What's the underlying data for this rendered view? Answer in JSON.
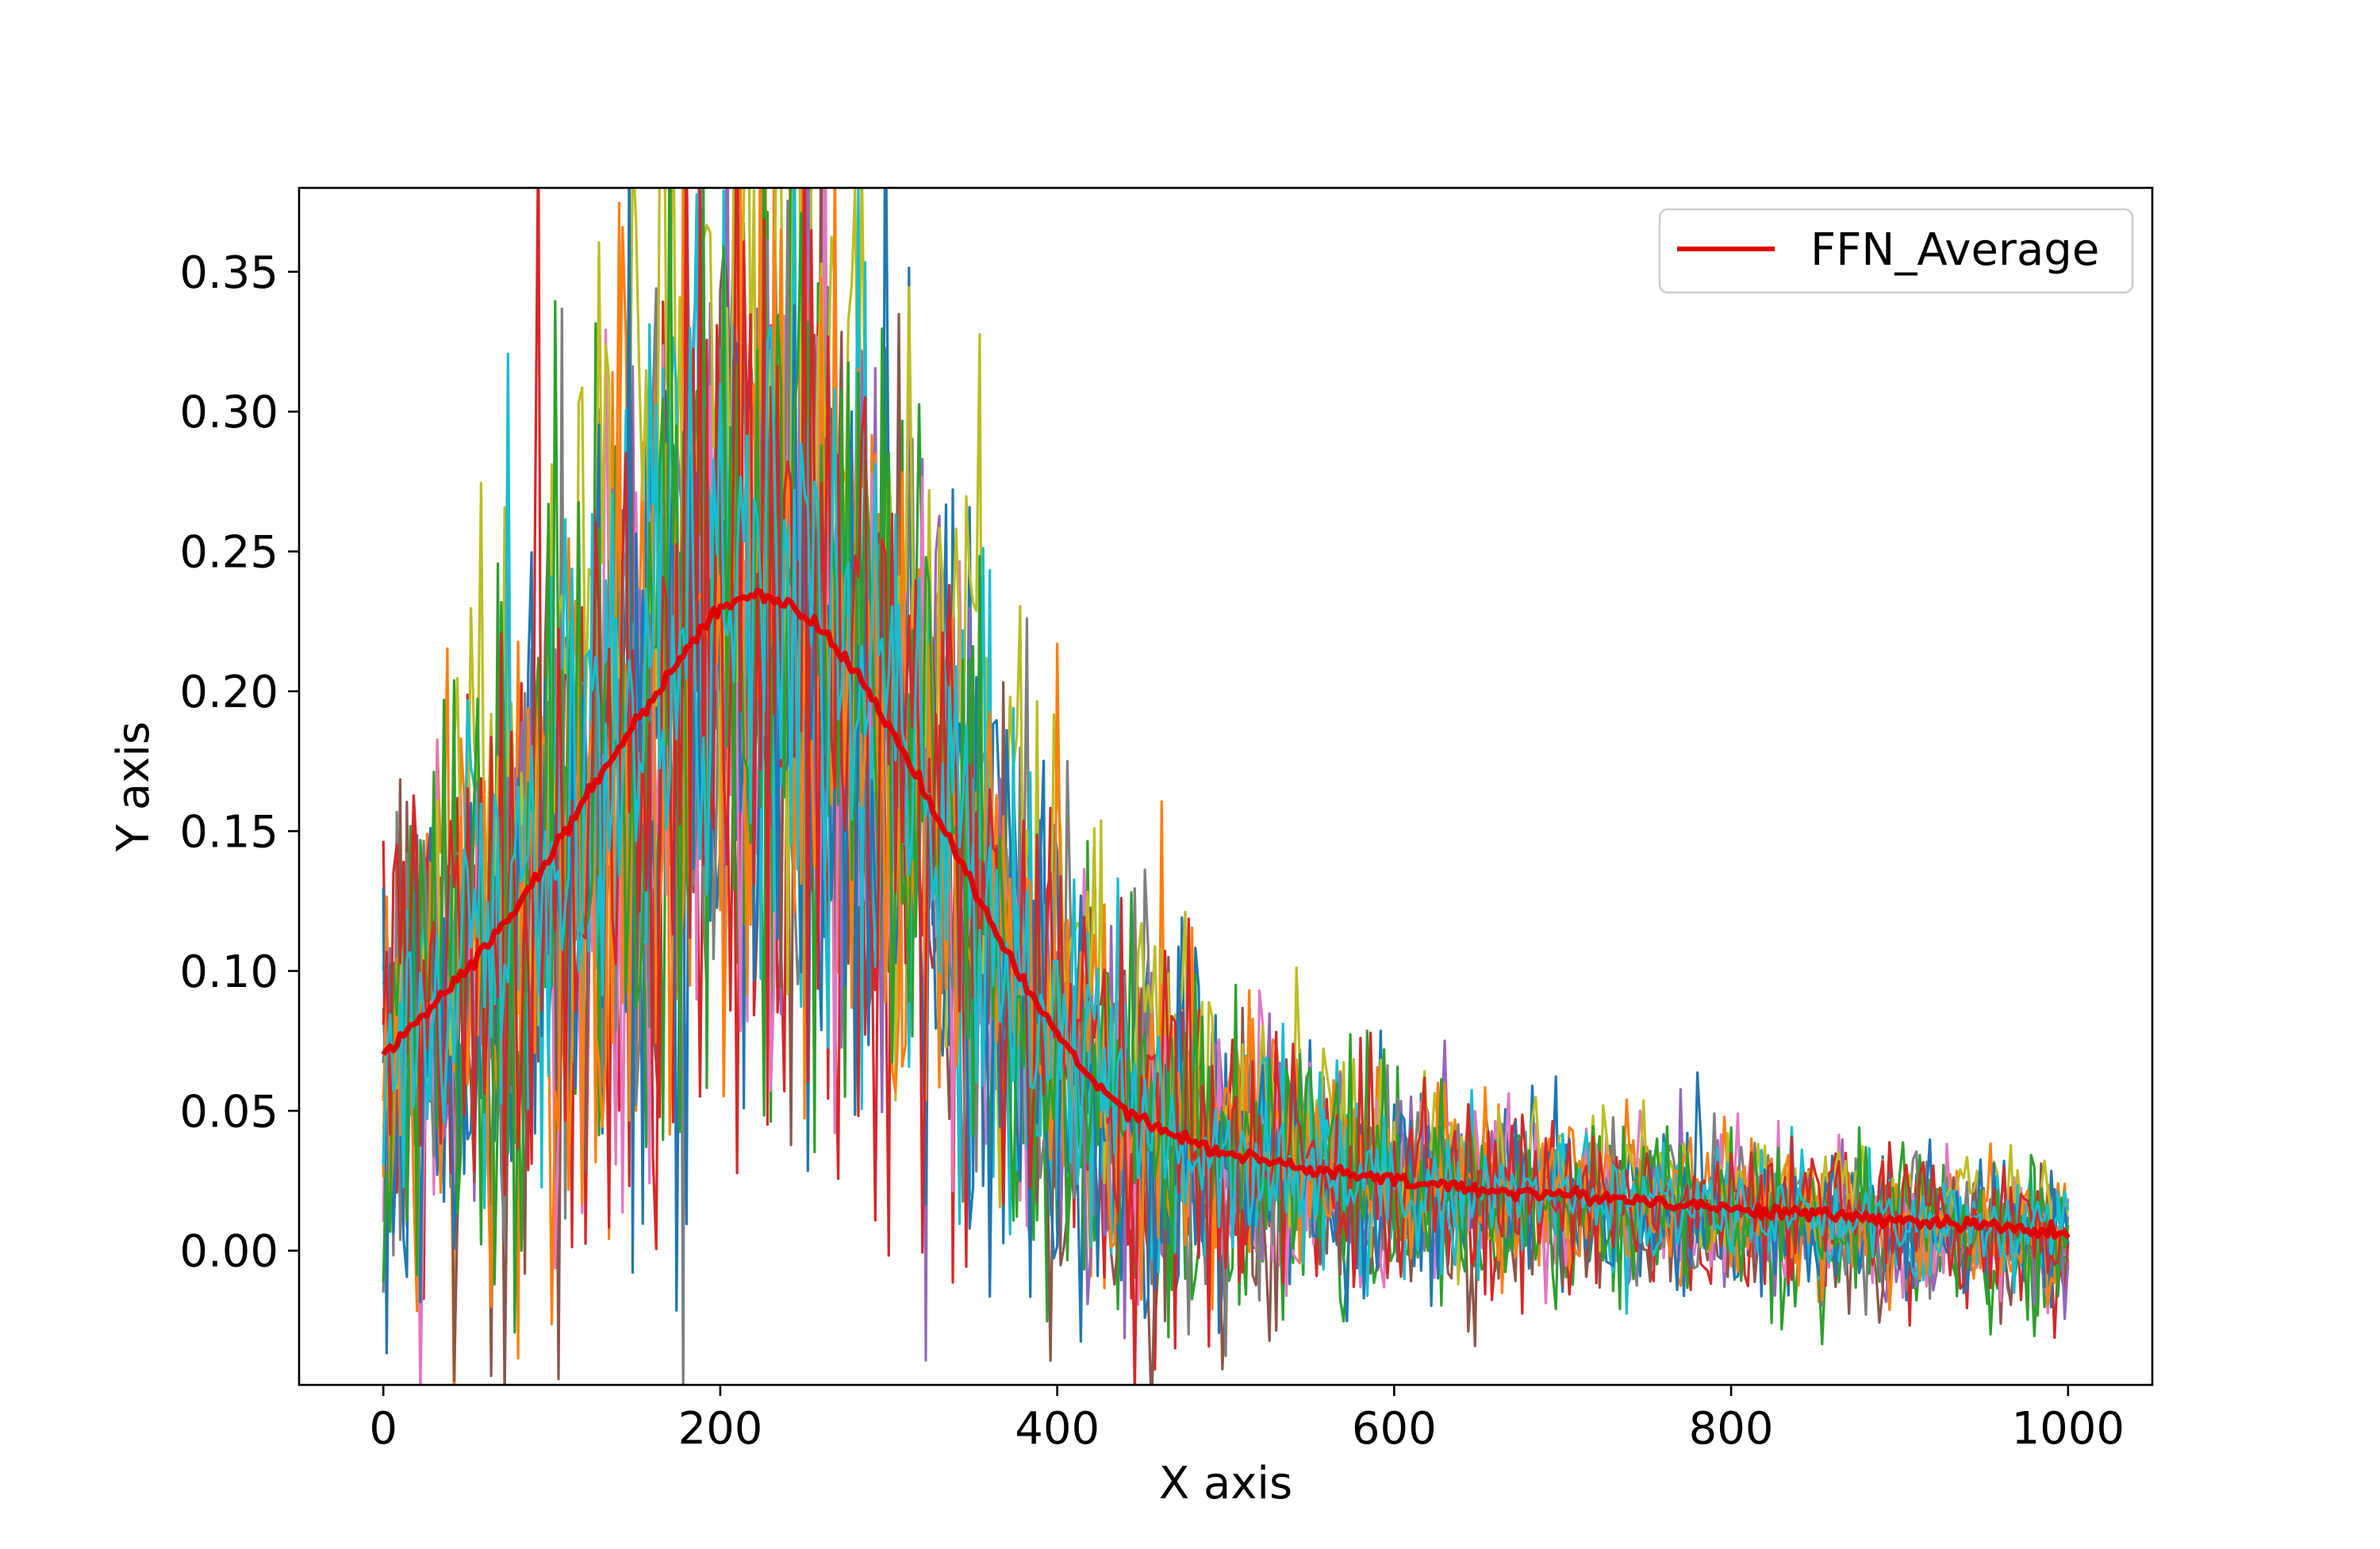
{
  "chart_data": {
    "type": "line",
    "title": "",
    "xlabel": "X axis",
    "ylabel": "Y axis",
    "xlim": [
      -50,
      1050
    ],
    "ylim": [
      -0.048,
      0.38
    ],
    "xticks": [
      0,
      200,
      400,
      600,
      800,
      1000
    ],
    "xtick_labels": [
      "0",
      "200",
      "400",
      "600",
      "800",
      "1000"
    ],
    "yticks": [
      0.0,
      0.05,
      0.1,
      0.15,
      0.2,
      0.25,
      0.3,
      0.35
    ],
    "ytick_labels": [
      "0.00",
      "0.05",
      "0.10",
      "0.15",
      "0.20",
      "0.25",
      "0.30",
      "0.35"
    ],
    "grid": false,
    "legend": {
      "position": "upper right",
      "entries": [
        {
          "label": "FFN_Average",
          "color": "#e00000"
        }
      ]
    },
    "noisy_series_colors": [
      "#1f77b4",
      "#ff7f0e",
      "#2ca02c",
      "#d62728",
      "#9467bd",
      "#8c564b",
      "#e377c2",
      "#7f7f7f",
      "#bcbd22",
      "#17becf"
    ],
    "series": [
      {
        "name": "FFN_Average",
        "color": "#e00000",
        "x": [
          0,
          20,
          40,
          60,
          80,
          100,
          120,
          140,
          160,
          180,
          200,
          220,
          240,
          260,
          280,
          300,
          320,
          340,
          360,
          380,
          400,
          420,
          440,
          460,
          480,
          500,
          550,
          600,
          650,
          700,
          750,
          800,
          850,
          900,
          950,
          1000
        ],
        "y": [
          0.069,
          0.083,
          0.094,
          0.108,
          0.124,
          0.142,
          0.162,
          0.18,
          0.198,
          0.215,
          0.23,
          0.235,
          0.232,
          0.222,
          0.207,
          0.188,
          0.166,
          0.142,
          0.118,
          0.096,
          0.077,
          0.062,
          0.051,
          0.044,
          0.039,
          0.035,
          0.029,
          0.025,
          0.022,
          0.02,
          0.018,
          0.015,
          0.013,
          0.011,
          0.009,
          0.006
        ]
      }
    ]
  }
}
